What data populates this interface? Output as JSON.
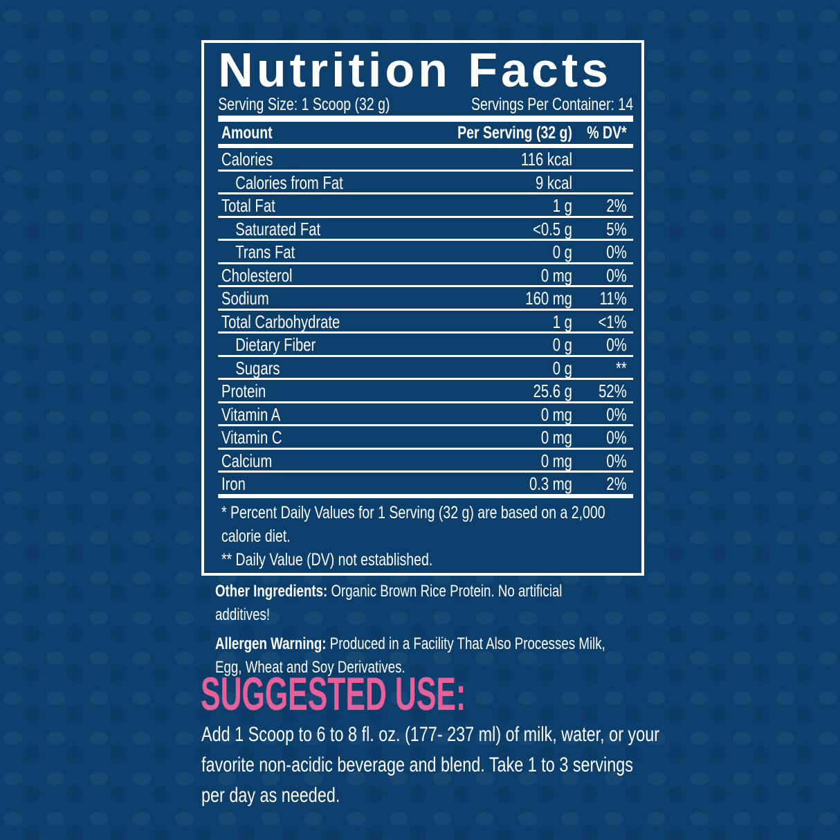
{
  "colors": {
    "background": "#0d3f6d",
    "accent": "#e8609a",
    "text": "#ffffff"
  },
  "label": {
    "title": "Nutrition Facts",
    "serving_size": "Serving Size: 1 Scoop (32 g)",
    "servings_per_container": "Servings Per Container: 14",
    "header": {
      "amount": "Amount",
      "per_serving": "Per Serving (32 g)",
      "dv": "% DV*"
    },
    "rows": [
      {
        "name": "Calories",
        "amount": "116 kcal",
        "dv": ""
      },
      {
        "name": "Calories from Fat",
        "amount": "9 kcal",
        "dv": ""
      },
      {
        "name": "Total Fat",
        "amount": "1 g",
        "dv": "2%"
      },
      {
        "name": "Saturated Fat",
        "amount": "<0.5 g",
        "dv": "5%"
      },
      {
        "name": "Trans Fat",
        "amount": "0 g",
        "dv": "0%"
      },
      {
        "name": "Cholesterol",
        "amount": "0 mg",
        "dv": "0%"
      },
      {
        "name": "Sodium",
        "amount": "160 mg",
        "dv": "11%"
      },
      {
        "name": "Total Carbohydrate",
        "amount": "1 g",
        "dv": "<1%"
      },
      {
        "name": "Dietary Fiber",
        "amount": "0 g",
        "dv": "0%"
      },
      {
        "name": "Sugars",
        "amount": "0 g",
        "dv": "**"
      },
      {
        "name": "Protein",
        "amount": "25.6 g",
        "dv": "52%"
      },
      {
        "name": "Vitamin A",
        "amount": "0 mg",
        "dv": "0%"
      },
      {
        "name": "Vitamin C",
        "amount": "0 mg",
        "dv": "0%"
      },
      {
        "name": "Calcium",
        "amount": "0 mg",
        "dv": "0%"
      },
      {
        "name": "Iron",
        "amount": "0.3 mg",
        "dv": "2%"
      }
    ],
    "footnote_1": "* Percent Daily Values for 1 Serving (32 g) are based on a 2,000 calorie diet.",
    "footnote_2": "** Daily Value (DV) not established."
  },
  "ingredients": {
    "label": "Other Ingredients:",
    "text": " Organic Brown Rice Protein. No artificial additives!"
  },
  "allergen": {
    "label": "Allergen Warning:",
    "text": " Produced in a Facility That Also Processes Milk, Egg, Wheat and Soy Derivatives."
  },
  "suggested_use": {
    "heading": "SUGGESTED USE:",
    "text": "Add 1 Scoop to 6 to 8 fl. oz. (177- 237 ml) of milk, water, or your favorite non-acidic beverage and blend. Take 1 to 3 servings per day as needed."
  }
}
